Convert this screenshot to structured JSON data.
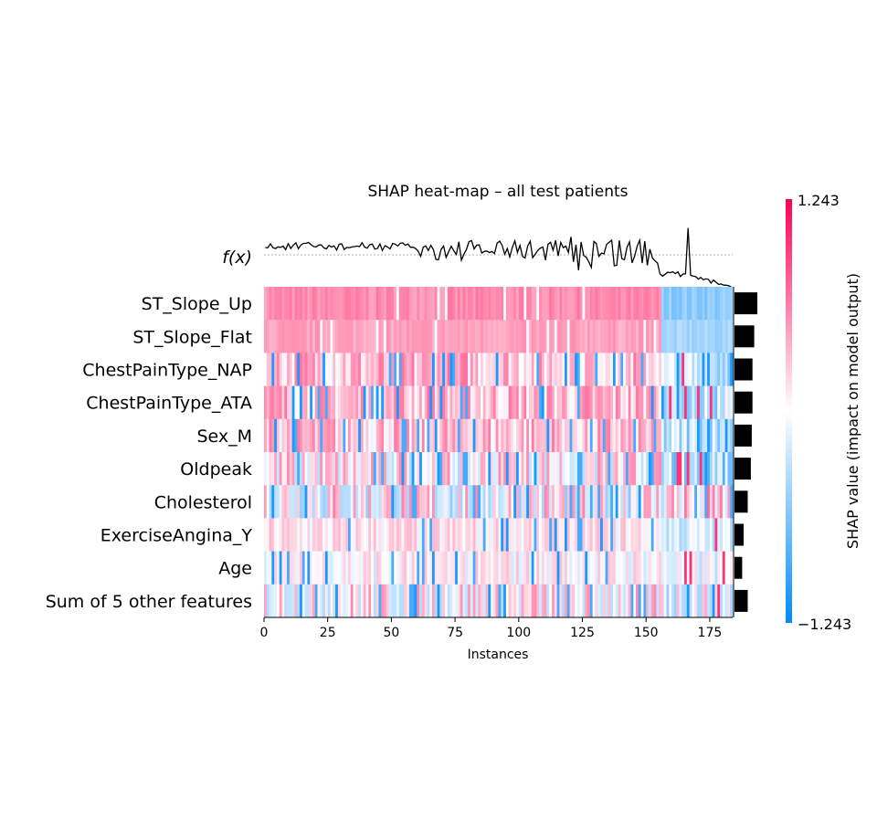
{
  "chart_data": {
    "type": "heatmap",
    "title": "SHAP heat-map – all test patients",
    "xlabel": "Instances",
    "fx_label": "f(x)",
    "colorbar": {
      "label": "SHAP value (impact on model output)",
      "min_label": "−1.243",
      "max_label": "1.243",
      "min": -1.243,
      "max": 1.243,
      "colors": {
        "low": "#008bfb",
        "mid": "#ffffff",
        "high": "#ff0052"
      }
    },
    "xlim": [
      0,
      184
    ],
    "xticks": [
      "0",
      "25",
      "50",
      "75",
      "100",
      "125",
      "150",
      "175"
    ],
    "xtick_values": [
      0,
      25,
      50,
      75,
      100,
      125,
      150,
      175
    ],
    "n_instances": 184,
    "features": [
      {
        "name": "ST_Slope_Up",
        "mean_abs": 0.95,
        "group_a": 0.55,
        "group_b": -0.55,
        "noise": 0.25,
        "fixed": true
      },
      {
        "name": "ST_Slope_Flat",
        "mean_abs": 0.82,
        "group_a": 0.45,
        "group_b": -0.45,
        "noise": 0.22,
        "fixed": true
      },
      {
        "name": "ChestPainType_NAP",
        "mean_abs": 0.75,
        "group_a": 0.32,
        "group_b": -0.3,
        "noise": 0.55,
        "fixed": false
      },
      {
        "name": "ChestPainType_ATA",
        "mean_abs": 0.75,
        "group_a": 0.32,
        "group_b": -0.3,
        "noise": 0.55,
        "fixed": false
      },
      {
        "name": "Sex_M",
        "mean_abs": 0.72,
        "group_a": 0.3,
        "group_b": -0.35,
        "noise": 0.55,
        "fixed": false
      },
      {
        "name": "Oldpeak",
        "mean_abs": 0.68,
        "group_a": 0.1,
        "group_b": -0.35,
        "noise": 0.7,
        "fixed": false
      },
      {
        "name": "Cholesterol",
        "mean_abs": 0.55,
        "group_a": 0.05,
        "group_b": 0.2,
        "noise": 0.85,
        "fixed": false
      },
      {
        "name": "ExerciseAngina_Y",
        "mean_abs": 0.38,
        "group_a": 0.12,
        "group_b": -0.2,
        "noise": 0.35,
        "fixed": false
      },
      {
        "name": "Age",
        "mean_abs": 0.32,
        "group_a": 0.05,
        "group_b": -0.08,
        "noise": 0.4,
        "fixed": false
      },
      {
        "name": "Sum of 5 other features",
        "mean_abs": 0.55,
        "group_a": 0.1,
        "group_b": -0.05,
        "noise": 0.7,
        "fixed": false
      }
    ],
    "split_instance": 156
  }
}
